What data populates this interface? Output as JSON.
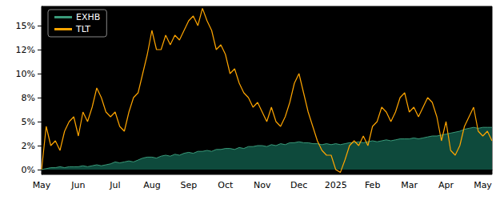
{
  "chart_data": {
    "type": "line",
    "categories": [
      "May",
      null,
      null,
      null,
      null,
      null,
      null,
      null,
      "Jun",
      null,
      null,
      null,
      null,
      null,
      null,
      null,
      "Jul",
      null,
      null,
      null,
      null,
      null,
      null,
      null,
      "Aug",
      null,
      null,
      null,
      null,
      null,
      null,
      null,
      "Sep",
      null,
      null,
      null,
      null,
      null,
      null,
      null,
      "Oct",
      null,
      null,
      null,
      null,
      null,
      null,
      null,
      "Nov",
      null,
      null,
      null,
      null,
      null,
      null,
      null,
      "Dec",
      null,
      null,
      null,
      null,
      null,
      null,
      null,
      "2025",
      null,
      null,
      null,
      null,
      null,
      null,
      null,
      "Feb",
      null,
      null,
      null,
      null,
      null,
      null,
      null,
      "Mar",
      null,
      null,
      null,
      null,
      null,
      null,
      null,
      "Apr",
      null,
      null,
      null,
      null,
      null,
      null,
      null,
      "May",
      null,
      null
    ],
    "series": [
      {
        "name": "EXHB",
        "type": "area",
        "color": "#3a9a7a",
        "values": [
          0,
          0.1,
          0.2,
          0.2,
          0.3,
          0.2,
          0.3,
          0.3,
          0.3,
          0.4,
          0.3,
          0.4,
          0.5,
          0.4,
          0.5,
          0.6,
          0.8,
          0.7,
          0.8,
          0.9,
          0.8,
          1.0,
          1.2,
          1.3,
          1.3,
          1.2,
          1.4,
          1.5,
          1.4,
          1.6,
          1.5,
          1.7,
          1.8,
          1.7,
          1.9,
          1.9,
          2.0,
          1.9,
          2.1,
          2.1,
          2.2,
          2.2,
          2.1,
          2.3,
          2.2,
          2.4,
          2.4,
          2.5,
          2.5,
          2.4,
          2.6,
          2.5,
          2.7,
          2.6,
          2.8,
          2.8,
          2.9,
          2.8,
          2.8,
          2.7,
          2.7,
          2.6,
          2.7,
          2.6,
          2.7,
          2.6,
          2.7,
          2.8,
          2.8,
          2.9,
          2.8,
          2.9,
          3.0,
          2.9,
          3.0,
          3.1,
          3.0,
          3.1,
          3.2,
          3.2,
          3.2,
          3.3,
          3.2,
          3.3,
          3.4,
          3.5,
          3.5,
          3.6,
          3.7,
          3.8,
          3.9,
          4.0,
          4.2,
          4.3,
          4.4,
          4.3,
          4.4,
          4.4,
          4.4
        ]
      },
      {
        "name": "TLT",
        "type": "line",
        "color": "#ffa500",
        "values": [
          0,
          4.5,
          2.5,
          3,
          2,
          4,
          5,
          5.5,
          3.5,
          6,
          5,
          6.5,
          8.5,
          7.5,
          6,
          5.5,
          6,
          4.5,
          4,
          6,
          7.5,
          8,
          10,
          12,
          14.5,
          12.5,
          12.5,
          14,
          13,
          14,
          13.5,
          14.5,
          15.5,
          16,
          15,
          16.8,
          15.5,
          14.5,
          12.5,
          13,
          12,
          10,
          10.5,
          9,
          8,
          7.5,
          6.5,
          7,
          6,
          5,
          6.5,
          5,
          4.5,
          5.5,
          7,
          9,
          10,
          8,
          6,
          4.5,
          3,
          2,
          1.5,
          1.5,
          0,
          -0.3,
          1,
          2.5,
          3,
          2.5,
          3.5,
          2.5,
          4.5,
          5,
          6.5,
          6,
          5,
          6,
          7.5,
          8,
          6,
          6.5,
          5.5,
          6.5,
          7.5,
          7,
          5.5,
          3,
          5,
          2,
          1.5,
          2.5,
          4.5,
          5.5,
          6.5,
          4,
          3.5,
          4,
          3
        ]
      }
    ],
    "ylim": [
      -0.5,
      17
    ],
    "yticks": [
      {
        "value": 0,
        "label": "0%"
      },
      {
        "value": 2.5,
        "label": "2%"
      },
      {
        "value": 5,
        "label": "5%"
      },
      {
        "value": 7.5,
        "label": "8%"
      },
      {
        "value": 10,
        "label": "10%"
      },
      {
        "value": 12.5,
        "label": "12%"
      },
      {
        "value": 15,
        "label": "15%"
      }
    ],
    "grid": false,
    "legend": "upper left"
  }
}
